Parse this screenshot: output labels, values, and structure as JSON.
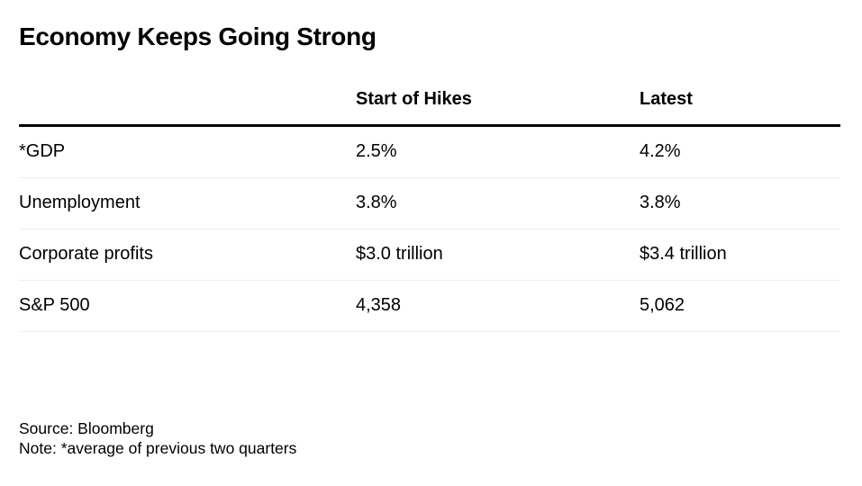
{
  "title": "Economy Keeps Going Strong",
  "chart_data": {
    "type": "table",
    "columns": [
      "",
      "Start of Hikes",
      "Latest"
    ],
    "rows": [
      [
        "*GDP",
        "2.5%",
        "4.2%"
      ],
      [
        "Unemployment",
        "3.8%",
        "3.8%"
      ],
      [
        "Corporate profits",
        "$3.0 trillion",
        "$3.4 trillion"
      ],
      [
        "S&P 500",
        "4,358",
        "5,062"
      ]
    ]
  },
  "footer": {
    "source": "Source: Bloomberg",
    "note": "Note: *average of previous two quarters"
  }
}
